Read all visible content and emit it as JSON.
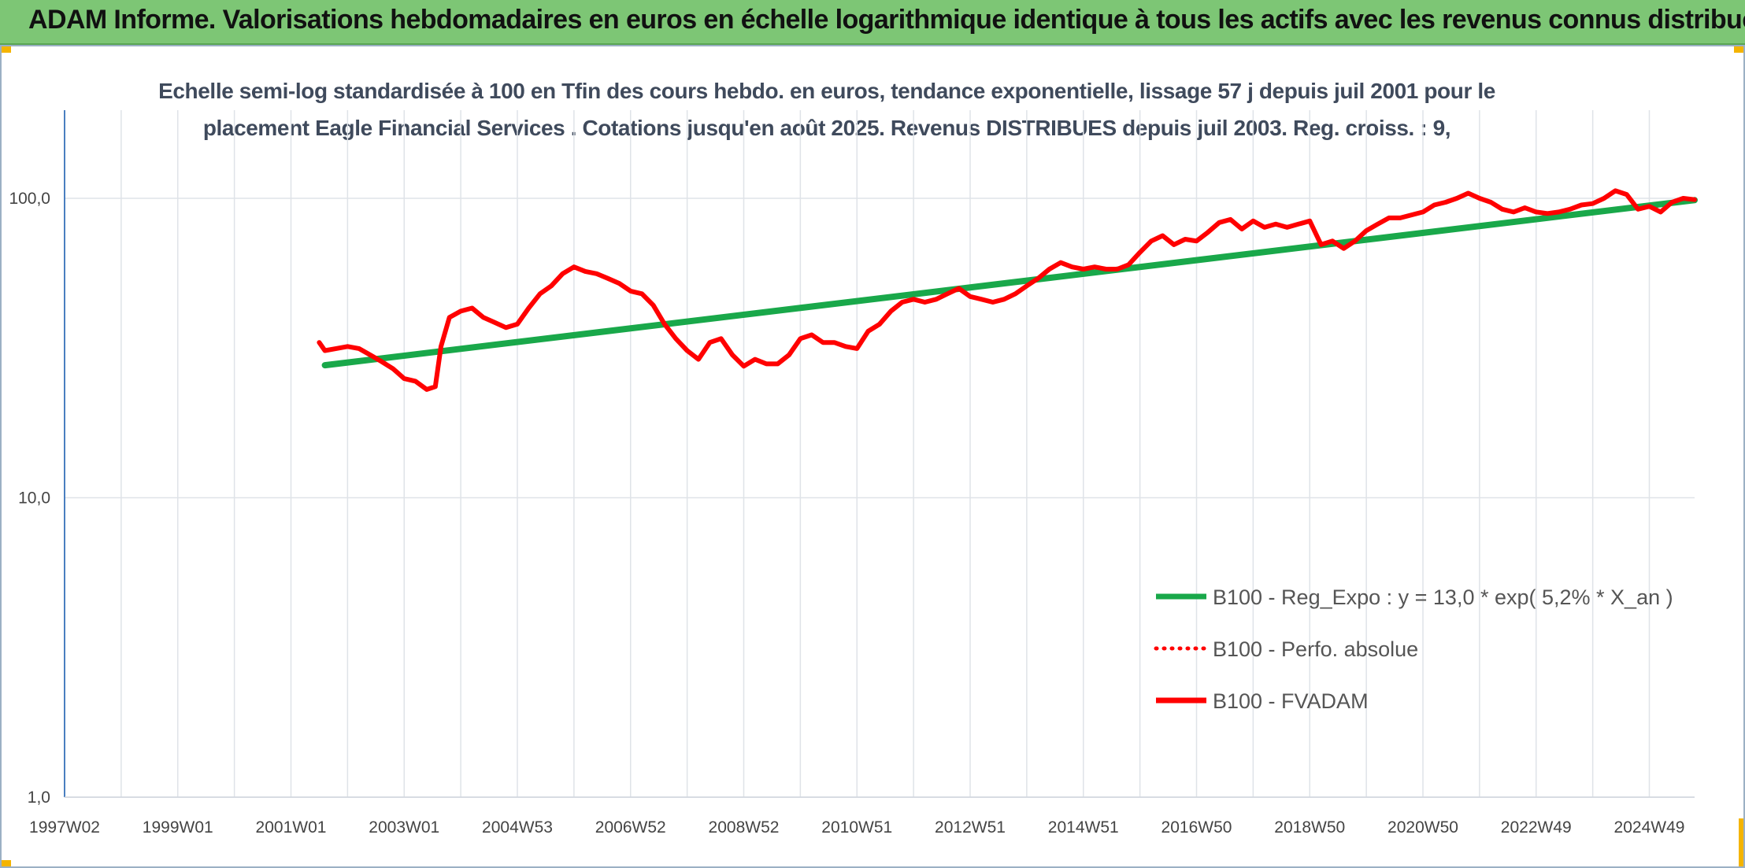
{
  "header": {
    "title": "ADAM Informe. Valorisations hebdomadaires en euros en échelle logarithmique identique à tous les actifs avec les revenus connus distribués"
  },
  "colors": {
    "header_bg": "#7dc675",
    "accent_corner": "#f4b400",
    "regression_line": "#19a84a",
    "price_line": "#ff0000",
    "grid": "#dfe3e8",
    "axis": "#4a7fc0"
  },
  "chart_data": {
    "type": "line",
    "title_line1": "Echelle semi-log standardisée à 100 en Tfin des cours hebdo. en euros, tendance exponentielle, lissage 57 j depuis juil 2001 pour le",
    "title_line2": "placement Eagle Financial Services . Cotations jusqu'en août 2025. Revenus DISTRIBUES depuis juil 2003. Reg. croiss. : 9,",
    "y_scale": "log",
    "ylim": [
      1,
      200
    ],
    "y_ticks": [
      1,
      10,
      100
    ],
    "y_tick_labels": [
      "1,0",
      "10,0",
      "100,0"
    ],
    "xlim": [
      1997.0,
      2025.8
    ],
    "x_ticks": [
      1997.0,
      1999.0,
      2001.0,
      2003.0,
      2005.0,
      2007.0,
      2009.0,
      2011.0,
      2013.0,
      2015.0,
      2017.0,
      2019.0,
      2021.0,
      2023.0,
      2025.0
    ],
    "x_tick_labels": [
      "1997W02",
      "1999W01",
      "2001W01",
      "2003W01",
      "2004W53",
      "2006W52",
      "2008W52",
      "2010W51",
      "2012W51",
      "2014W51",
      "2016W50",
      "2018W50",
      "2020W50",
      "2022W49",
      "2024W49"
    ],
    "grid": true,
    "legend_position": "right",
    "legend": [
      {
        "label": "B100 - Reg_Expo : y = 13,0 * exp( 5,2% *  X_an )",
        "style": "solid",
        "color": "#19a84a"
      },
      {
        "label": "B100 - Perfo. absolue",
        "style": "dotted",
        "color": "#ff0000"
      },
      {
        "label": "B100 - FVADAM",
        "style": "solid",
        "color": "#ff0000"
      }
    ],
    "series": [
      {
        "name": "B100 - Reg_Expo : y = 13,0 * exp( 5,2% *  X_an )",
        "color": "#19a84a",
        "x": [
          2001.6,
          2025.8
        ],
        "y": [
          27.7,
          98.6
        ]
      },
      {
        "name": "B100 - FVADAM",
        "color": "#ff0000",
        "x": [
          2001.5,
          2001.6,
          2001.8,
          2002.0,
          2002.2,
          2002.4,
          2002.6,
          2002.8,
          2003.0,
          2003.2,
          2003.4,
          2003.55,
          2003.65,
          2003.8,
          2004.0,
          2004.2,
          2004.4,
          2004.6,
          2004.8,
          2005.0,
          2005.2,
          2005.4,
          2005.6,
          2005.8,
          2006.0,
          2006.2,
          2006.4,
          2006.6,
          2006.8,
          2007.0,
          2007.2,
          2007.4,
          2007.6,
          2007.8,
          2008.0,
          2008.2,
          2008.4,
          2008.6,
          2008.8,
          2009.0,
          2009.2,
          2009.4,
          2009.6,
          2009.8,
          2010.0,
          2010.2,
          2010.4,
          2010.6,
          2010.8,
          2011.0,
          2011.2,
          2011.4,
          2011.6,
          2011.8,
          2012.0,
          2012.2,
          2012.4,
          2012.6,
          2012.8,
          2013.0,
          2013.2,
          2013.4,
          2013.6,
          2013.8,
          2014.0,
          2014.2,
          2014.4,
          2014.6,
          2014.8,
          2015.0,
          2015.2,
          2015.4,
          2015.6,
          2015.8,
          2016.0,
          2016.2,
          2016.4,
          2016.6,
          2016.8,
          2017.0,
          2017.2,
          2017.4,
          2017.6,
          2017.8,
          2018.0,
          2018.2,
          2018.4,
          2018.6,
          2018.8,
          2019.0,
          2019.2,
          2019.4,
          2019.6,
          2019.8,
          2020.0,
          2020.2,
          2020.4,
          2020.6,
          2020.8,
          2021.0,
          2021.2,
          2021.4,
          2021.6,
          2021.8,
          2022.0,
          2022.2,
          2022.4,
          2022.6,
          2022.8,
          2023.0,
          2023.2,
          2023.4,
          2023.6,
          2023.8,
          2024.0,
          2024.2,
          2024.4,
          2024.6,
          2024.8,
          2025.0,
          2025.2,
          2025.4,
          2025.6,
          2025.8
        ],
        "y": [
          33,
          31,
          31.5,
          32,
          31.5,
          30,
          28.5,
          27,
          25,
          24.5,
          23,
          23.5,
          32,
          40,
          42,
          43,
          40,
          38.5,
          37,
          38,
          43,
          48,
          51,
          56,
          59,
          57,
          56,
          54,
          52,
          49,
          48,
          44,
          38,
          34,
          31,
          29,
          33,
          34,
          30,
          27.5,
          29,
          28,
          28,
          30,
          34,
          35,
          33,
          33,
          32,
          31.5,
          36,
          38,
          42,
          45,
          46,
          45,
          46,
          48,
          50,
          47,
          46,
          45,
          46,
          48,
          51,
          54,
          58,
          61,
          59,
          58,
          59,
          58,
          58,
          60,
          66,
          72,
          75,
          70,
          73,
          72,
          77,
          83,
          85,
          79,
          84,
          80,
          82,
          80,
          82,
          84,
          70,
          72,
          68,
          72,
          78,
          82,
          86,
          86,
          88,
          90,
          95,
          97,
          100,
          104,
          100,
          97,
          92,
          90,
          93,
          90,
          89,
          90,
          92,
          95,
          96,
          100,
          106,
          103,
          92,
          94,
          90,
          97,
          100,
          99
        ]
      }
    ]
  }
}
